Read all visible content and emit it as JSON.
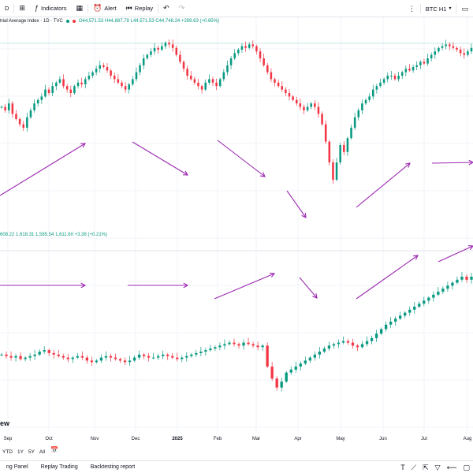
{
  "toolbar": {
    "left_fragment": "D",
    "indicators_label": "Indicators",
    "alert_label": "Alert",
    "replay_label": "Replay",
    "symbol_label": "BTC H1"
  },
  "top_legend": {
    "title": "trial Average Index · 1D · TVC",
    "ohlc": "O44,571.53 H44,887.79 L44,571.53 C44,748.24 +289.63 (+0.65%)"
  },
  "bottom_legend": {
    "ohlc": "608.22 1,618.31 1,585.54 1,611.60 +3.38 (+0.21%)"
  },
  "watermark": "ew",
  "time_axis": [
    {
      "label": "Sep",
      "bold": false
    },
    {
      "label": "Oct",
      "bold": false
    },
    {
      "label": "Nov",
      "bold": false
    },
    {
      "label": "Dec",
      "bold": false
    },
    {
      "label": "2025",
      "bold": true
    },
    {
      "label": "Feb",
      "bold": false
    },
    {
      "label": "Mar",
      "bold": false
    },
    {
      "label": "Apr",
      "bold": false
    },
    {
      "label": "May",
      "bold": false
    },
    {
      "label": "Jun",
      "bold": false
    },
    {
      "label": "Jul",
      "bold": false
    },
    {
      "label": "Aug",
      "bold": false
    }
  ],
  "range_buttons": [
    "YTD",
    "1Y",
    "5Y",
    "All"
  ],
  "bottom_tabs": [
    "ng Panel",
    "Replay Trading",
    "Backtesting report"
  ],
  "colors": {
    "up": "#089981",
    "down": "#f23645",
    "arrow": "#9c27b0",
    "hline": "#b2dfdb"
  },
  "top_series_close": [
    0.62,
    0.6,
    0.64,
    0.58,
    0.55,
    0.52,
    0.5,
    0.56,
    0.6,
    0.64,
    0.66,
    0.68,
    0.72,
    0.7,
    0.74,
    0.76,
    0.78,
    0.74,
    0.72,
    0.7,
    0.74,
    0.76,
    0.75,
    0.78,
    0.8,
    0.82,
    0.84,
    0.86,
    0.85,
    0.83,
    0.8,
    0.78,
    0.76,
    0.74,
    0.72,
    0.75,
    0.78,
    0.82,
    0.86,
    0.9,
    0.92,
    0.94,
    0.96,
    0.95,
    0.97,
    0.99,
    0.98,
    0.96,
    0.92,
    0.88,
    0.84,
    0.8,
    0.78,
    0.76,
    0.74,
    0.72,
    0.76,
    0.78,
    0.76,
    0.74,
    0.78,
    0.82,
    0.86,
    0.9,
    0.93,
    0.95,
    0.97,
    0.96,
    0.98,
    0.97,
    0.94,
    0.9,
    0.86,
    0.82,
    0.78,
    0.76,
    0.74,
    0.72,
    0.7,
    0.68,
    0.66,
    0.64,
    0.62,
    0.6,
    0.62,
    0.64,
    0.62,
    0.58,
    0.52,
    0.42,
    0.3,
    0.2,
    0.3,
    0.4,
    0.36,
    0.44,
    0.5,
    0.56,
    0.6,
    0.64,
    0.66,
    0.68,
    0.72,
    0.74,
    0.76,
    0.78,
    0.8,
    0.8,
    0.78,
    0.8,
    0.82,
    0.84,
    0.83,
    0.85,
    0.86,
    0.88,
    0.87,
    0.9,
    0.92,
    0.94,
    0.96,
    0.97,
    0.98,
    0.97,
    0.96,
    0.95,
    0.93,
    0.92,
    0.94,
    0.96
  ],
  "bottom_series_close": [
    0.38,
    0.37,
    0.36,
    0.37,
    0.35,
    0.36,
    0.37,
    0.38,
    0.4,
    0.41,
    0.39,
    0.38,
    0.37,
    0.36,
    0.35,
    0.36,
    0.37,
    0.36,
    0.34,
    0.33,
    0.34,
    0.36,
    0.37,
    0.36,
    0.35,
    0.34,
    0.33,
    0.34,
    0.36,
    0.38,
    0.37,
    0.36,
    0.36,
    0.37,
    0.38,
    0.37,
    0.36,
    0.35,
    0.36,
    0.37,
    0.38,
    0.39,
    0.4,
    0.41,
    0.42,
    0.43,
    0.44,
    0.45,
    0.46,
    0.45,
    0.44,
    0.46,
    0.45,
    0.44,
    0.43,
    0.44,
    0.3,
    0.22,
    0.16,
    0.2,
    0.26,
    0.28,
    0.3,
    0.32,
    0.34,
    0.36,
    0.38,
    0.4,
    0.42,
    0.44,
    0.45,
    0.46,
    0.47,
    0.46,
    0.44,
    0.43,
    0.45,
    0.47,
    0.49,
    0.52,
    0.55,
    0.58,
    0.6,
    0.62,
    0.64,
    0.66,
    0.68,
    0.7,
    0.72,
    0.74,
    0.76,
    0.78,
    0.8,
    0.82,
    0.84,
    0.86,
    0.88,
    0.9,
    0.88,
    0.9
  ]
}
